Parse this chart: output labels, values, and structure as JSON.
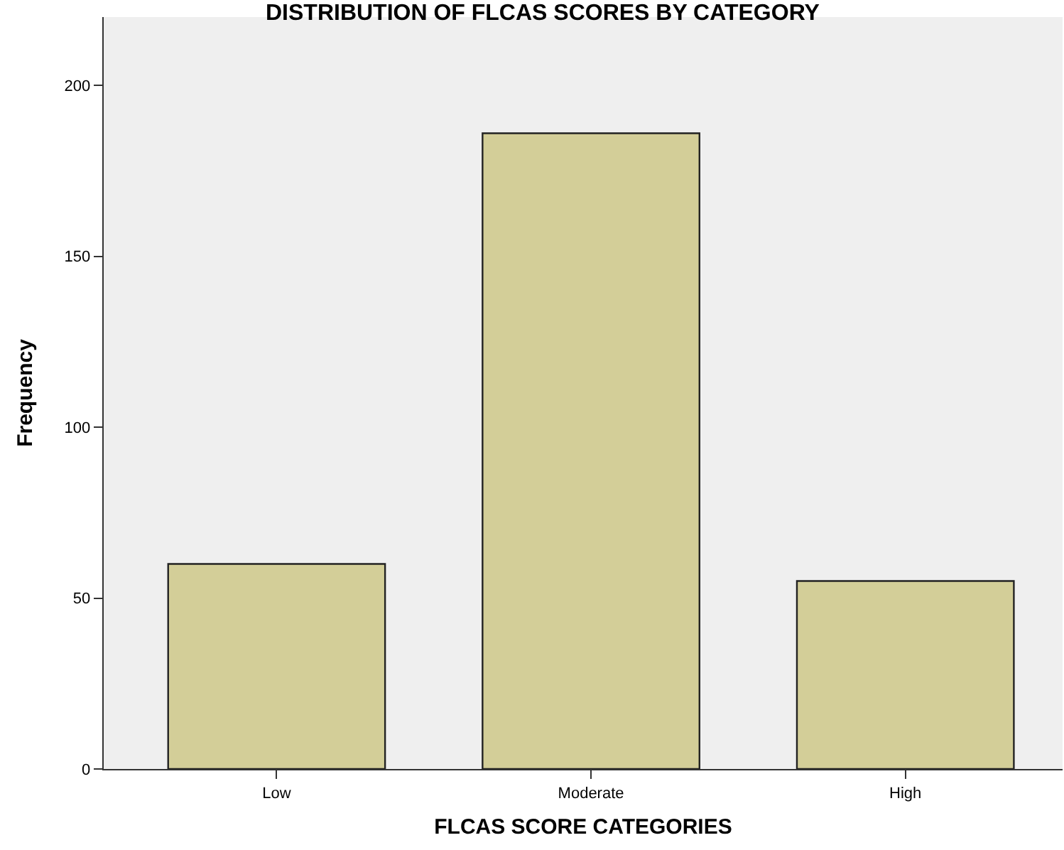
{
  "chart_data": {
    "type": "bar",
    "title": "DISTRIBUTION OF FLCAS SCORES BY CATEGORY",
    "xlabel": "FLCAS SCORE CATEGORIES",
    "ylabel": "Frequency",
    "categories": [
      "Low",
      "Moderate",
      "High"
    ],
    "values": [
      60,
      186,
      55
    ],
    "color": "#d3ce98",
    "ylim": [
      0,
      220
    ],
    "yticks": [
      0,
      50,
      100,
      150,
      200
    ],
    "grid": false
  }
}
